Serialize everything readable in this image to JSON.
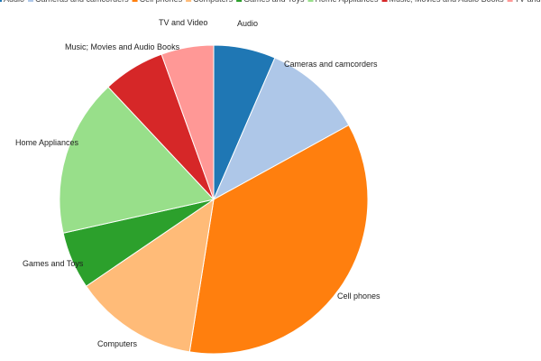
{
  "chart_data": {
    "type": "pie",
    "title": "",
    "legend_position": "top",
    "start_angle": "12 o'clock",
    "direction": "clockwise",
    "slices": [
      {
        "label": "Audio",
        "value": 6.5,
        "color": "#1f77b4"
      },
      {
        "label": "Cameras and camcorders",
        "value": 10.5,
        "color": "#aec7e8"
      },
      {
        "label": "Cell phones",
        "value": 35.5,
        "color": "#ff7f0e"
      },
      {
        "label": "Computers",
        "value": 13.0,
        "color": "#ffbb78"
      },
      {
        "label": "Games and Toys",
        "value": 6.0,
        "color": "#2ca02c"
      },
      {
        "label": "Home Appliances",
        "value": 16.5,
        "color": "#98df8a"
      },
      {
        "label": "Music; Movies and Audio Books",
        "value": 6.5,
        "color": "#d62728"
      },
      {
        "label": "TV and Video",
        "value": 5.5,
        "color": "#ff9896"
      }
    ]
  }
}
